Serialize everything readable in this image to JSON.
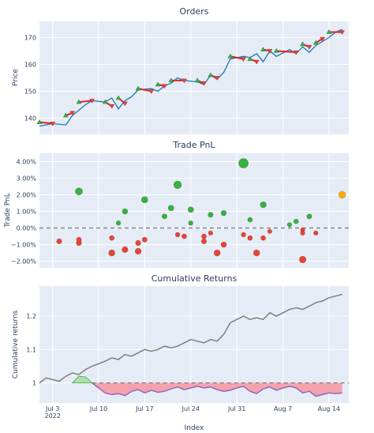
{
  "x_ticks": [
    {
      "date": "2022-07-03",
      "label": "Jul 3",
      "sub": "2022"
    },
    {
      "date": "2022-07-10",
      "label": "Jul 10",
      "sub": ""
    },
    {
      "date": "2022-07-17",
      "label": "Jul 17",
      "sub": ""
    },
    {
      "date": "2022-07-24",
      "label": "Jul 24",
      "sub": ""
    },
    {
      "date": "2022-07-31",
      "label": "Jul 31",
      "sub": ""
    },
    {
      "date": "2022-08-07",
      "label": "Aug 7",
      "sub": ""
    },
    {
      "date": "2022-08-14",
      "label": "Aug 14",
      "sub": ""
    }
  ],
  "x_axis_label": "Index",
  "colors": {
    "plot_bg": "#e5ecf6",
    "grid": "#ffffff",
    "price_line": "#1f77b4",
    "trade_line": "#d62728",
    "buy_marker": "#37b13f",
    "sell_marker": "#ea4335",
    "profit": "#37b13f",
    "loss": "#ea4335",
    "open_trade": "#ffaa00",
    "cum_line": "#7f7f7f",
    "drawdown_fill": "#f4a3ad",
    "drawdown_line": "#9467bd",
    "profit_fill": "#b4ddb0"
  },
  "chart_data": [
    {
      "type": "line",
      "title": "Orders",
      "xlabel": "",
      "ylabel": "Price",
      "x_range": [
        "2022-07-01",
        "2022-08-17"
      ],
      "ylim": [
        134,
        176
      ],
      "y_ticks": [
        140,
        150,
        160,
        170
      ],
      "series": [
        {
          "role": "price",
          "x": [
            "2022-07-01",
            "2022-07-03",
            "2022-07-05",
            "2022-07-06",
            "2022-07-07",
            "2022-07-08",
            "2022-07-09",
            "2022-07-11",
            "2022-07-12",
            "2022-07-13",
            "2022-07-14",
            "2022-07-15",
            "2022-07-16",
            "2022-07-18",
            "2022-07-19",
            "2022-07-20",
            "2022-07-21",
            "2022-07-22",
            "2022-07-23",
            "2022-07-25",
            "2022-07-26",
            "2022-07-27",
            "2022-07-28",
            "2022-07-29",
            "2022-07-30",
            "2022-08-01",
            "2022-08-02",
            "2022-08-03",
            "2022-08-04",
            "2022-08-05",
            "2022-08-06",
            "2022-08-08",
            "2022-08-09",
            "2022-08-10",
            "2022-08-11",
            "2022-08-12",
            "2022-08-13",
            "2022-08-14",
            "2022-08-15",
            "2022-08-16"
          ],
          "y": [
            137,
            138,
            137.5,
            141,
            143,
            145,
            146.5,
            146,
            147.5,
            143.5,
            146.5,
            148,
            150.5,
            151,
            150,
            152,
            153,
            155,
            154,
            153.5,
            152.5,
            156,
            154.5,
            157,
            162,
            163,
            162.5,
            164,
            161,
            165,
            163,
            165.5,
            164,
            166.5,
            164.5,
            167,
            168.5,
            170,
            172,
            173
          ]
        }
      ],
      "trades": [
        {
          "entry": [
            "2022-07-01",
            138.5
          ],
          "exit": [
            "2022-07-03",
            138
          ]
        },
        {
          "entry": [
            "2022-07-05",
            141
          ],
          "exit": [
            "2022-07-06",
            142
          ]
        },
        {
          "entry": [
            "2022-07-07",
            146
          ],
          "exit": [
            "2022-07-09",
            146.5
          ]
        },
        {
          "entry": [
            "2022-07-11",
            146
          ],
          "exit": [
            "2022-07-12",
            144.5
          ]
        },
        {
          "entry": [
            "2022-07-13",
            147.5
          ],
          "exit": [
            "2022-07-14",
            145.5
          ]
        },
        {
          "entry": [
            "2022-07-16",
            151
          ],
          "exit": [
            "2022-07-18",
            150
          ]
        },
        {
          "entry": [
            "2022-07-19",
            152.5
          ],
          "exit": [
            "2022-07-20",
            152
          ]
        },
        {
          "entry": [
            "2022-07-21",
            154
          ],
          "exit": [
            "2022-07-23",
            154
          ]
        },
        {
          "entry": [
            "2022-07-25",
            154
          ],
          "exit": [
            "2022-07-26",
            153
          ]
        },
        {
          "entry": [
            "2022-07-27",
            156
          ],
          "exit": [
            "2022-07-28",
            155
          ]
        },
        {
          "entry": [
            "2022-07-30",
            163
          ],
          "exit": [
            "2022-08-01",
            162
          ]
        },
        {
          "entry": [
            "2022-08-02",
            162
          ],
          "exit": [
            "2022-08-03",
            161
          ]
        },
        {
          "entry": [
            "2022-08-04",
            165.5
          ],
          "exit": [
            "2022-08-05",
            165
          ]
        },
        {
          "entry": [
            "2022-08-06",
            165
          ],
          "exit": [
            "2022-08-09",
            164.5
          ]
        },
        {
          "entry": [
            "2022-08-10",
            167.5
          ],
          "exit": [
            "2022-08-11",
            166.5
          ]
        },
        {
          "entry": [
            "2022-08-12",
            168
          ],
          "exit": [
            "2022-08-13",
            169.5
          ]
        },
        {
          "entry": [
            "2022-08-14",
            172
          ],
          "exit": [
            "2022-08-16",
            172
          ]
        }
      ]
    },
    {
      "type": "scatter",
      "title": "Trade PnL",
      "xlabel": "",
      "ylabel": "Trade PnL",
      "x_range": [
        "2022-07-01",
        "2022-08-17"
      ],
      "ylim": [
        -2.4,
        4.5
      ],
      "y_ticks": [
        -2,
        -1,
        0,
        1,
        2,
        3,
        4
      ],
      "y_tick_labels": [
        "−2.00%",
        "−1.00%",
        "0.00%",
        "1.00%",
        "2.00%",
        "3.00%",
        "4.00%"
      ],
      "zero_line": true,
      "points": [
        {
          "x": "2022-07-04",
          "y": -0.8,
          "kind": "loss"
        },
        {
          "x": "2022-07-07",
          "y": 2.2,
          "kind": "profit"
        },
        {
          "x": "2022-07-07",
          "y": -0.9,
          "kind": "loss"
        },
        {
          "x": "2022-07-07",
          "y": -0.7,
          "kind": "loss"
        },
        {
          "x": "2022-07-12",
          "y": -1.5,
          "kind": "loss"
        },
        {
          "x": "2022-07-12",
          "y": -0.6,
          "kind": "loss"
        },
        {
          "x": "2022-07-13",
          "y": 0.3,
          "kind": "profit"
        },
        {
          "x": "2022-07-14",
          "y": 1.0,
          "kind": "profit"
        },
        {
          "x": "2022-07-14",
          "y": -1.3,
          "kind": "loss"
        },
        {
          "x": "2022-07-16",
          "y": -1.4,
          "kind": "loss"
        },
        {
          "x": "2022-07-16",
          "y": -0.9,
          "kind": "loss"
        },
        {
          "x": "2022-07-17",
          "y": 1.7,
          "kind": "profit"
        },
        {
          "x": "2022-07-17",
          "y": -0.7,
          "kind": "loss"
        },
        {
          "x": "2022-07-20",
          "y": 0.7,
          "kind": "profit"
        },
        {
          "x": "2022-07-21",
          "y": 1.2,
          "kind": "profit"
        },
        {
          "x": "2022-07-22",
          "y": 2.6,
          "kind": "profit"
        },
        {
          "x": "2022-07-22",
          "y": -0.4,
          "kind": "loss"
        },
        {
          "x": "2022-07-23",
          "y": -0.5,
          "kind": "loss"
        },
        {
          "x": "2022-07-24",
          "y": 1.1,
          "kind": "profit"
        },
        {
          "x": "2022-07-24",
          "y": 0.3,
          "kind": "profit"
        },
        {
          "x": "2022-07-26",
          "y": -0.5,
          "kind": "loss"
        },
        {
          "x": "2022-07-26",
          "y": -0.8,
          "kind": "loss"
        },
        {
          "x": "2022-07-27",
          "y": 0.8,
          "kind": "profit"
        },
        {
          "x": "2022-07-27",
          "y": -0.3,
          "kind": "loss"
        },
        {
          "x": "2022-07-28",
          "y": -1.5,
          "kind": "loss"
        },
        {
          "x": "2022-07-29",
          "y": 0.9,
          "kind": "profit"
        },
        {
          "x": "2022-07-29",
          "y": -1.0,
          "kind": "loss"
        },
        {
          "x": "2022-08-01",
          "y": 3.9,
          "kind": "profit"
        },
        {
          "x": "2022-08-01",
          "y": -0.4,
          "kind": "loss"
        },
        {
          "x": "2022-08-02",
          "y": 0.5,
          "kind": "profit"
        },
        {
          "x": "2022-08-02",
          "y": -0.6,
          "kind": "loss"
        },
        {
          "x": "2022-08-03",
          "y": -1.5,
          "kind": "loss"
        },
        {
          "x": "2022-08-04",
          "y": 1.4,
          "kind": "profit"
        },
        {
          "x": "2022-08-04",
          "y": -0.6,
          "kind": "loss"
        },
        {
          "x": "2022-08-05",
          "y": -0.2,
          "kind": "loss"
        },
        {
          "x": "2022-08-08",
          "y": 0.2,
          "kind": "profit"
        },
        {
          "x": "2022-08-09",
          "y": 0.4,
          "kind": "profit"
        },
        {
          "x": "2022-08-10",
          "y": -0.1,
          "kind": "loss"
        },
        {
          "x": "2022-08-10",
          "y": -0.3,
          "kind": "loss"
        },
        {
          "x": "2022-08-10",
          "y": -1.9,
          "kind": "loss"
        },
        {
          "x": "2022-08-11",
          "y": 0.7,
          "kind": "profit"
        },
        {
          "x": "2022-08-12",
          "y": -0.3,
          "kind": "loss"
        },
        {
          "x": "2022-08-16",
          "y": 2.0,
          "kind": "open_trade"
        }
      ]
    },
    {
      "type": "line",
      "title": "Cumulative Returns",
      "xlabel": "Index",
      "ylabel": "Cumulative returns",
      "x_range": [
        "2022-07-01",
        "2022-08-17"
      ],
      "ylim": [
        0.94,
        1.29
      ],
      "y_ticks": [
        1,
        1.1,
        1.2
      ],
      "y_tick_labels": [
        "1",
        "1.1",
        "1.2"
      ],
      "baseline": 1,
      "series": [
        {
          "role": "cumulative",
          "x": [
            "2022-07-01",
            "2022-07-02",
            "2022-07-03",
            "2022-07-04",
            "2022-07-05",
            "2022-07-06",
            "2022-07-07",
            "2022-07-08",
            "2022-07-09",
            "2022-07-11",
            "2022-07-12",
            "2022-07-13",
            "2022-07-14",
            "2022-07-15",
            "2022-07-16",
            "2022-07-17",
            "2022-07-18",
            "2022-07-19",
            "2022-07-20",
            "2022-07-21",
            "2022-07-22",
            "2022-07-23",
            "2022-07-24",
            "2022-07-25",
            "2022-07-26",
            "2022-07-27",
            "2022-07-28",
            "2022-07-29",
            "2022-07-30",
            "2022-08-01",
            "2022-08-02",
            "2022-08-03",
            "2022-08-04",
            "2022-08-05",
            "2022-08-06",
            "2022-08-08",
            "2022-08-09",
            "2022-08-10",
            "2022-08-11",
            "2022-08-12",
            "2022-08-13",
            "2022-08-14",
            "2022-08-15",
            "2022-08-16"
          ],
          "y": [
            1.0,
            1.015,
            1.01,
            1.005,
            1.02,
            1.03,
            1.025,
            1.04,
            1.05,
            1.065,
            1.075,
            1.07,
            1.085,
            1.08,
            1.09,
            1.1,
            1.095,
            1.1,
            1.11,
            1.105,
            1.11,
            1.12,
            1.13,
            1.125,
            1.12,
            1.13,
            1.125,
            1.145,
            1.18,
            1.2,
            1.19,
            1.195,
            1.19,
            1.21,
            1.2,
            1.22,
            1.225,
            1.22,
            1.23,
            1.24,
            1.245,
            1.255,
            1.26,
            1.265
          ]
        },
        {
          "role": "drawdown",
          "x": [
            "2022-07-09",
            "2022-07-10",
            "2022-07-11",
            "2022-07-12",
            "2022-07-13",
            "2022-07-14",
            "2022-07-15",
            "2022-07-16",
            "2022-07-17",
            "2022-07-18",
            "2022-07-19",
            "2022-07-20",
            "2022-07-21",
            "2022-07-22",
            "2022-07-23",
            "2022-07-24",
            "2022-07-25",
            "2022-07-26",
            "2022-07-27",
            "2022-07-28",
            "2022-07-29",
            "2022-07-30",
            "2022-07-31",
            "2022-08-01",
            "2022-08-02",
            "2022-08-03",
            "2022-08-04",
            "2022-08-05",
            "2022-08-06",
            "2022-08-07",
            "2022-08-08",
            "2022-08-09",
            "2022-08-10",
            "2022-08-11",
            "2022-08-12",
            "2022-08-13",
            "2022-08-14",
            "2022-08-15",
            "2022-08-16"
          ],
          "y": [
            1.0,
            0.985,
            0.97,
            0.965,
            0.968,
            0.962,
            0.975,
            0.98,
            0.97,
            0.978,
            0.972,
            0.975,
            0.982,
            0.988,
            0.98,
            0.985,
            0.99,
            0.985,
            0.988,
            0.98,
            0.975,
            0.978,
            0.985,
            0.99,
            0.975,
            0.968,
            0.982,
            0.988,
            0.978,
            0.985,
            0.99,
            0.985,
            0.97,
            0.975,
            0.96,
            0.965,
            0.97,
            0.968,
            0.97
          ]
        }
      ],
      "profit_band": {
        "x": [
          "2022-07-06",
          "2022-07-07",
          "2022-07-08",
          "2022-07-09"
        ],
        "y": [
          1.0,
          1.02,
          1.018,
          1.0
        ]
      }
    }
  ]
}
